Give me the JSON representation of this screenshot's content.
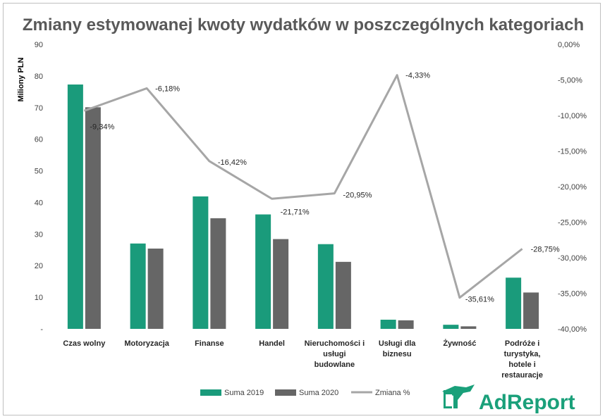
{
  "chart_data": {
    "type": "bar",
    "title": "Zmiany estymowanej kwoty wydatków w poszczególnych kategoriach",
    "ylabel": "Miliony PLN",
    "ylim": [
      0,
      90
    ],
    "yticks": [
      "-",
      "10",
      "20",
      "30",
      "40",
      "50",
      "60",
      "70",
      "80",
      "90"
    ],
    "y2lim": [
      -40,
      0
    ],
    "y2ticks": [
      "-40,00%",
      "-35,00%",
      "-30,00%",
      "-25,00%",
      "-20,00%",
      "-15,00%",
      "-10,00%",
      "-5,00%",
      "0,00%"
    ],
    "categories": [
      [
        "Czas wolny"
      ],
      [
        "Motoryzacja"
      ],
      [
        "Finanse"
      ],
      [
        "Handel"
      ],
      [
        "Nieruchomości i",
        "usługi",
        "budowlane"
      ],
      [
        "Usługi dla",
        "biznesu"
      ],
      [
        "Żywność"
      ],
      [
        "Podróże i",
        "turystyka,",
        "hotele i",
        "restauracje"
      ]
    ],
    "series": [
      {
        "name": "Suma 2019",
        "type": "bar",
        "color": "#1a9b7b",
        "values": [
          77.3,
          27.0,
          41.9,
          36.2,
          26.8,
          2.9,
          1.3,
          16.2
        ]
      },
      {
        "name": "Suma 2020",
        "type": "bar",
        "color": "#666666",
        "values": [
          70.1,
          25.4,
          35.0,
          28.4,
          21.2,
          2.7,
          0.8,
          11.5
        ]
      },
      {
        "name": "Zmiana %",
        "type": "line",
        "color": "#a6a6a6",
        "axis": "secondary",
        "values": [
          -9.34,
          -6.18,
          -16.42,
          -21.71,
          -20.95,
          -4.33,
          -35.61,
          -28.75
        ],
        "labels": [
          "-9,34%",
          "-6,18%",
          "-16,42%",
          "-21,71%",
          "-20,95%",
          "-4,33%",
          "-35,61%",
          "-28,75%"
        ]
      }
    ],
    "legend_position": "bottom"
  },
  "logo": {
    "text": "AdReport",
    "color": "#1aa07a"
  }
}
